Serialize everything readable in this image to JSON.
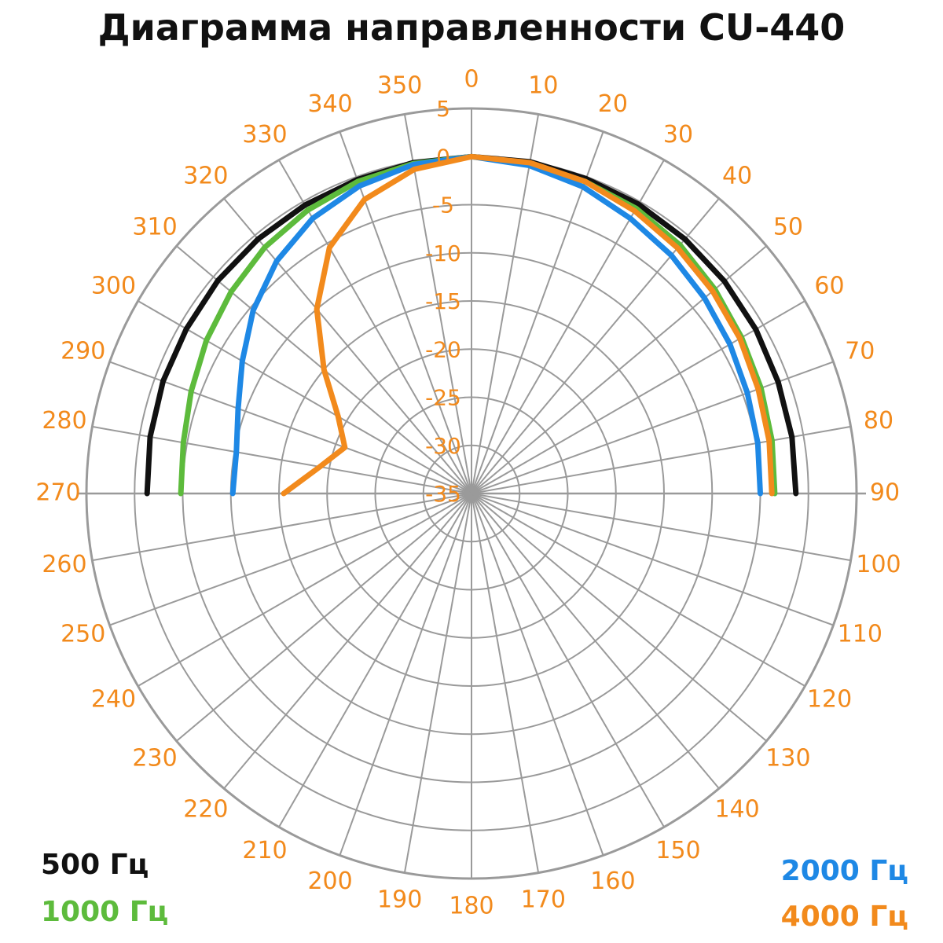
{
  "chart_data": {
    "type": "line",
    "subtype": "polar",
    "title": "Диаграмма направленности CU-440",
    "angle_unit": "deg",
    "angle_direction": "clockwise",
    "zero_direction": "top",
    "angle_ticks": [
      0,
      10,
      20,
      30,
      40,
      50,
      60,
      70,
      80,
      90,
      100,
      110,
      120,
      130,
      140,
      150,
      160,
      170,
      180,
      190,
      200,
      210,
      220,
      230,
      240,
      250,
      260,
      270,
      280,
      290,
      300,
      310,
      320,
      330,
      340,
      350
    ],
    "radial_ticks": [
      5,
      0,
      -5,
      -10,
      -15,
      -20,
      -25,
      -30,
      -35
    ],
    "radial_tick_labels": [
      "5",
      "0",
      "-5",
      "-10",
      "-15",
      "-20",
      "-25",
      "-30",
      "-35"
    ],
    "rlim": [
      -35,
      5
    ],
    "grid": true,
    "legend_position": "bottom-corners",
    "series": [
      {
        "name": "500 Гц",
        "color": "#111111",
        "angles": [
          0,
          10,
          20,
          30,
          40,
          50,
          60,
          70,
          80,
          90,
          270,
          280,
          290,
          300,
          310,
          320,
          330,
          340,
          350
        ],
        "values": [
          0,
          0,
          -0.2,
          -0.3,
          -0.5,
          -0.7,
          -0.9,
          -1.1,
          -1.2,
          -1.3,
          -1.3,
          -1.1,
          -0.9,
          -0.8,
          -0.6,
          -0.5,
          -0.4,
          -0.3,
          -0.1
        ]
      },
      {
        "name": "1000 Гц",
        "color": "#5dbb3c",
        "angles": [
          0,
          10,
          20,
          30,
          40,
          50,
          60,
          70,
          80,
          90,
          270,
          280,
          290,
          300,
          310,
          320,
          330,
          340,
          350
        ],
        "values": [
          0,
          -0.2,
          -0.5,
          -0.8,
          -1.3,
          -2.0,
          -2.6,
          -3.0,
          -3.3,
          -3.5,
          -4.8,
          -4.6,
          -4.0,
          -3.2,
          -2.4,
          -1.6,
          -1.0,
          -0.5,
          -0.2
        ]
      },
      {
        "name": "2000 Гц",
        "color": "#1e88e5",
        "angles": [
          0,
          10,
          20,
          30,
          40,
          50,
          60,
          70,
          80,
          90,
          270,
          280,
          290,
          300,
          310,
          320,
          330,
          340,
          350
        ],
        "values": [
          0,
          -0.4,
          -1.1,
          -2.0,
          -2.7,
          -3.4,
          -4.0,
          -4.5,
          -4.8,
          -5.0,
          -10.2,
          -10.2,
          -9.2,
          -7.5,
          -5.4,
          -3.5,
          -2.0,
          -1.0,
          -0.3
        ]
      },
      {
        "name": "4000 Гц",
        "color": "#f28a1c",
        "angles": [
          0,
          10,
          20,
          30,
          40,
          50,
          60,
          70,
          80,
          90,
          270,
          280,
          290,
          300,
          310,
          320,
          330,
          340,
          350
        ],
        "values": [
          0,
          -0.1,
          -0.5,
          -1.1,
          -1.7,
          -2.3,
          -2.8,
          -3.3,
          -3.6,
          -3.8,
          -15.5,
          -19.0,
          -21.0,
          -19.0,
          -15.0,
          -10.0,
          -5.5,
          -2.5,
          -0.8
        ]
      }
    ]
  },
  "legend": {
    "items": [
      {
        "label": "500 Гц",
        "color": "#111111"
      },
      {
        "label": "1000 Гц",
        "color": "#5dbb3c"
      },
      {
        "label": "2000 Гц",
        "color": "#1e88e5"
      },
      {
        "label": "4000 Гц",
        "color": "#f28a1c"
      }
    ]
  },
  "colors": {
    "tick_labels": "#f28a1c",
    "grid": "#9a9a9a",
    "title": "#111111"
  }
}
